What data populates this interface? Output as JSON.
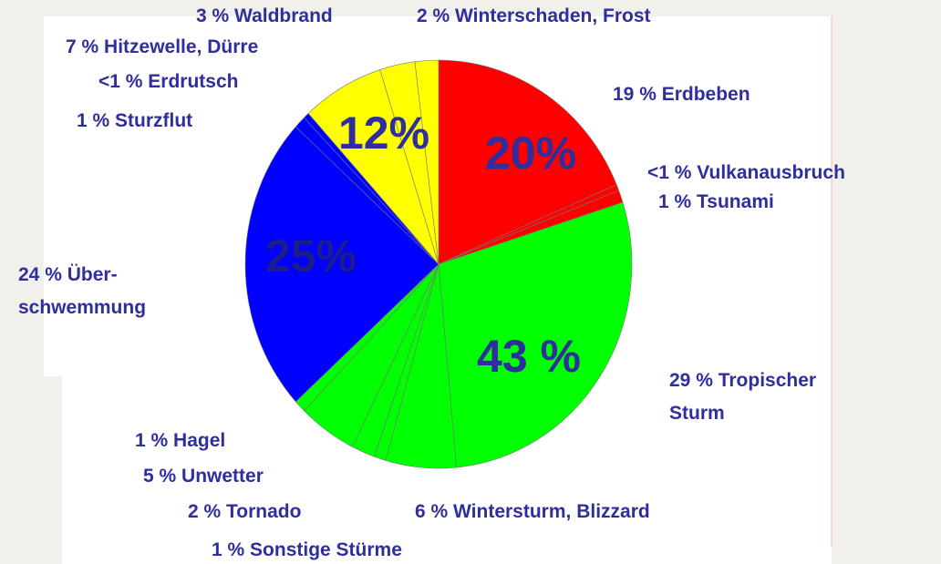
{
  "chart_data": {
    "type": "pie",
    "categories": [
      "Erdbeben",
      "Vulkanausbruch",
      "Tsunami",
      "Tropischer Sturm",
      "Wintersturm, Blizzard",
      "Sonstige Stürme",
      "Tornado",
      "Unwetter",
      "Hagel",
      "Über-schwemmung",
      "Sturzflut",
      "Erdrutsch",
      "Hitzewelle, Dürre",
      "Waldbrand",
      "Winterschaden, Frost"
    ],
    "values": [
      19,
      0.5,
      1,
      29,
      6,
      1,
      2,
      5,
      1,
      24,
      1,
      0.5,
      7,
      3,
      2
    ],
    "value_labels": [
      "19 %",
      "<1 %",
      "1 %",
      "29 %",
      "6 %",
      "1 %",
      "2 %",
      "5 %",
      "1 %",
      "24 %",
      "1 %",
      "<1 %",
      "7 %",
      "3 %",
      "2 %"
    ],
    "colors": [
      "#ff0000",
      "#ff0000",
      "#ff0000",
      "#00ff00",
      "#00ff00",
      "#00ff00",
      "#00ff00",
      "#00ff00",
      "#00ff00",
      "#0000ff",
      "#0000ff",
      "#0000ff",
      "#ffff00",
      "#ffff00",
      "#ffff00"
    ],
    "label_color": "#2e2e9e",
    "groups": [
      {
        "label": "20%",
        "color": "#2e2e9e"
      },
      {
        "label": "43 %",
        "color": "#2e2e9e"
      },
      {
        "label": "25%",
        "color": "#1c1c8c"
      },
      {
        "label": "12%",
        "color": "#2e2e9e"
      }
    ]
  }
}
